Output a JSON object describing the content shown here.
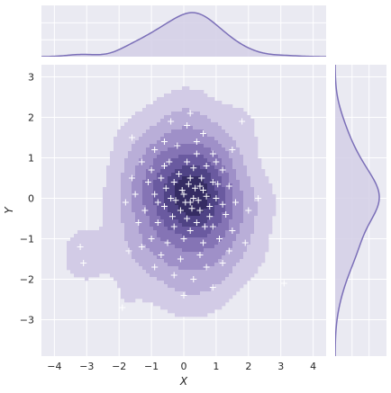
{
  "chart_data": {
    "type": "scatter",
    "title": "",
    "xlabel": "X",
    "ylabel": "Y",
    "xlim": [
      -4.4,
      4.4
    ],
    "ylim": [
      -3.9,
      3.3
    ],
    "xticks": [
      -4,
      -3,
      -2,
      -1,
      0,
      1,
      2,
      3,
      4
    ],
    "yticks": [
      -3,
      -2,
      -1,
      0,
      1,
      2,
      3
    ],
    "grid": true,
    "marker": "+",
    "colors": {
      "background": "#eaeaf2",
      "grid": "#ffffff",
      "accent": "#7b6fb8",
      "marginal_fill": "#d4cfe6",
      "kde_levels": [
        "#d2cbe6",
        "#b9aed8",
        "#9f90c8",
        "#8574b5",
        "#6a5aa0",
        "#4f4385",
        "#352c63"
      ]
    },
    "points": [
      [
        -3.2,
        -1.2
      ],
      [
        -3.1,
        -1.6
      ],
      [
        -1.9,
        -2.7
      ],
      [
        3.1,
        -2.1
      ],
      [
        1.8,
        1.9
      ],
      [
        -1.6,
        1.5
      ],
      [
        -0.4,
        1.9
      ],
      [
        0.1,
        1.8
      ],
      [
        0.2,
        2.1
      ],
      [
        0.6,
        1.6
      ],
      [
        -0.9,
        1.2
      ],
      [
        -0.2,
        1.3
      ],
      [
        0.4,
        1.4
      ],
      [
        0.9,
        1.1
      ],
      [
        -1.3,
        0.9
      ],
      [
        -0.6,
        0.8
      ],
      [
        0.1,
        0.9
      ],
      [
        0.7,
        0.8
      ],
      [
        1.2,
        0.7
      ],
      [
        -1.1,
        0.4
      ],
      [
        -0.7,
        0.5
      ],
      [
        -0.3,
        0.4
      ],
      [
        0.2,
        0.5
      ],
      [
        0.5,
        0.3
      ],
      [
        0.9,
        0.4
      ],
      [
        1.4,
        0.3
      ],
      [
        -1.5,
        0.1
      ],
      [
        -0.9,
        0.1
      ],
      [
        -0.4,
        0.0
      ],
      [
        0.0,
        0.1
      ],
      [
        0.3,
        0.0
      ],
      [
        0.6,
        0.2
      ],
      [
        1.0,
        0.0
      ],
      [
        1.6,
        -0.1
      ],
      [
        -1.2,
        -0.3
      ],
      [
        -0.6,
        -0.2
      ],
      [
        -0.1,
        -0.3
      ],
      [
        0.2,
        -0.1
      ],
      [
        0.5,
        -0.3
      ],
      [
        0.8,
        -0.2
      ],
      [
        1.3,
        -0.4
      ],
      [
        -1.4,
        -0.6
      ],
      [
        -0.8,
        -0.6
      ],
      [
        -0.3,
        -0.7
      ],
      [
        0.1,
        -0.5
      ],
      [
        0.4,
        -0.6
      ],
      [
        0.9,
        -0.7
      ],
      [
        1.5,
        -0.8
      ],
      [
        -1.0,
        -1.0
      ],
      [
        -0.5,
        -1.1
      ],
      [
        0.0,
        -1.0
      ],
      [
        0.6,
        -1.1
      ],
      [
        1.1,
        -1.0
      ],
      [
        -0.7,
        -1.4
      ],
      [
        -0.1,
        -1.5
      ],
      [
        0.5,
        -1.4
      ],
      [
        1.2,
        -1.6
      ],
      [
        -0.3,
        -1.9
      ],
      [
        0.3,
        -2.0
      ],
      [
        0.9,
        -2.2
      ],
      [
        2.0,
        -0.3
      ],
      [
        2.3,
        0.0
      ],
      [
        1.9,
        -1.1
      ],
      [
        -1.7,
        -1.3
      ],
      [
        -1.6,
        0.5
      ],
      [
        0.0,
        -2.4
      ],
      [
        0.35,
        0.25
      ],
      [
        0.15,
        0.35
      ],
      [
        -0.05,
        0.2
      ],
      [
        0.45,
        -0.05
      ],
      [
        0.25,
        -0.25
      ],
      [
        0.7,
        0.05
      ],
      [
        -0.25,
        -0.05
      ],
      [
        0.05,
        -0.1
      ],
      [
        0.55,
        0.5
      ],
      [
        -0.55,
        0.25
      ],
      [
        0.8,
        -0.45
      ],
      [
        -0.15,
        0.6
      ],
      [
        1.05,
        0.35
      ],
      [
        -0.8,
        -0.1
      ],
      [
        0.3,
        0.75
      ],
      [
        -0.35,
        -0.45
      ],
      [
        0.65,
        -0.7
      ],
      [
        1.2,
        -0.15
      ],
      [
        -1.0,
        0.7
      ],
      [
        -0.6,
        1.4
      ],
      [
        0.4,
        1.1
      ],
      [
        1.5,
        1.2
      ],
      [
        -1.3,
        -1.2
      ],
      [
        0.7,
        -1.7
      ],
      [
        -0.9,
        -1.7
      ],
      [
        1.4,
        -1.3
      ],
      [
        0.2,
        -0.8
      ],
      [
        -0.45,
        0.9
      ],
      [
        1.0,
        0.9
      ],
      [
        -1.8,
        -0.1
      ]
    ]
  }
}
